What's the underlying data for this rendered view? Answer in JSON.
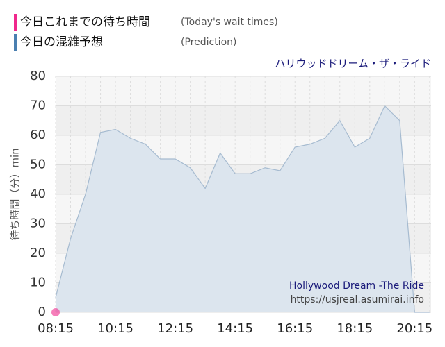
{
  "chart_data": {
    "type": "area",
    "title": "ハリウッドドリーム・ザ・ライド",
    "ylabel": "待ち時間（分）min",
    "annotations": [
      "Hollywood Dream -The Ride",
      "https://usjreal.asumirai.info"
    ],
    "series": [
      {
        "name": "今日これまでの待ち時間",
        "note": "(Today's wait times)",
        "color": "#f0288c",
        "x": [
          "08:15"
        ],
        "values": [
          0
        ]
      },
      {
        "name": "今日の混雑予想",
        "note": "(Prediction)",
        "color": "#4a7fb0",
        "x": [
          "08:15",
          "08:45",
          "09:15",
          "09:45",
          "10:15",
          "10:45",
          "11:15",
          "11:45",
          "12:15",
          "12:45",
          "13:15",
          "13:45",
          "14:15",
          "14:45",
          "15:15",
          "15:45",
          "16:15",
          "16:45",
          "17:15",
          "17:45",
          "18:15",
          "18:45",
          "19:15",
          "19:45",
          "20:15",
          "20:45"
        ],
        "values": [
          5,
          25,
          40,
          61,
          62,
          59,
          57,
          52,
          52,
          49,
          42,
          54,
          47,
          47,
          49,
          48,
          56,
          57,
          59,
          65,
          56,
          59,
          70,
          65,
          0,
          0
        ]
      }
    ],
    "xlim": [
      "08:15",
      "20:48"
    ],
    "xticks": [
      "08:15",
      "10:15",
      "12:15",
      "14:15",
      "16:15",
      "18:15",
      "20:15"
    ],
    "ylim": [
      0,
      80
    ],
    "yticks": [
      0,
      10,
      20,
      30,
      40,
      50,
      60,
      70,
      80
    ],
    "grid": true
  }
}
